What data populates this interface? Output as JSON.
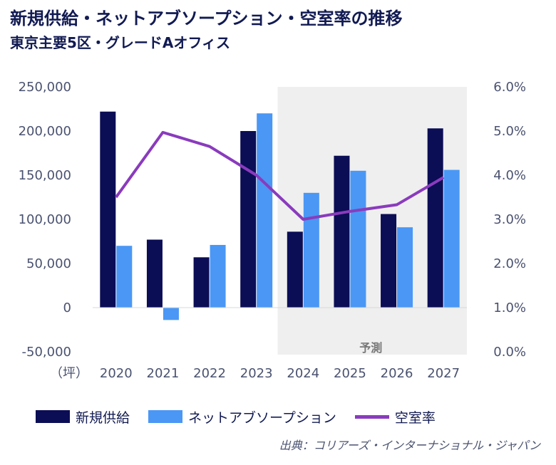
{
  "header": {
    "title": "新規供給・ネットアブソープション・空室率の推移",
    "subtitle": "東京主要5区・グレードAオフィス"
  },
  "chart_data": {
    "type": "bar",
    "categories": [
      "2020",
      "2021",
      "2022",
      "2023",
      "2024",
      "2025",
      "2026",
      "2027"
    ],
    "series": [
      {
        "name": "新規供給",
        "type": "bar",
        "axis": "left",
        "color": "#0b0d55",
        "values": [
          222000,
          77000,
          57000,
          200000,
          86000,
          172000,
          106000,
          203000
        ]
      },
      {
        "name": "ネットアブソープション",
        "type": "bar",
        "axis": "left",
        "color": "#4a97f5",
        "values": [
          70000,
          -14000,
          71000,
          220000,
          130000,
          155000,
          91000,
          156000
        ]
      },
      {
        "name": "空室率",
        "type": "line",
        "axis": "right",
        "color": "#8a3bbd",
        "values": [
          3.5,
          4.97,
          4.65,
          4.0,
          3.0,
          3.18,
          3.33,
          3.95
        ]
      }
    ],
    "y_left": {
      "unit": "（坪）",
      "ylim": [
        -50000,
        250000
      ],
      "ticks": [
        -50000,
        0,
        50000,
        100000,
        150000,
        200000,
        250000
      ],
      "tick_labels": [
        "-50,000",
        "0",
        "50,000",
        "100,000",
        "150,000",
        "200,000",
        "250,000"
      ]
    },
    "y_right": {
      "ylim": [
        0,
        6
      ],
      "ticks": [
        0,
        1,
        2,
        3,
        4,
        5,
        6
      ],
      "tick_labels": [
        "0.0%",
        "1.0%",
        "2.0%",
        "3.0%",
        "4.0%",
        "5.0%",
        "6.0%"
      ]
    },
    "forecast": {
      "label": "予測",
      "from": "2024",
      "to": "2027",
      "color": "#efefef"
    },
    "grid": false,
    "legend": "bottom"
  },
  "source": "出典：コリアーズ・インターナショナル・ジャパン"
}
